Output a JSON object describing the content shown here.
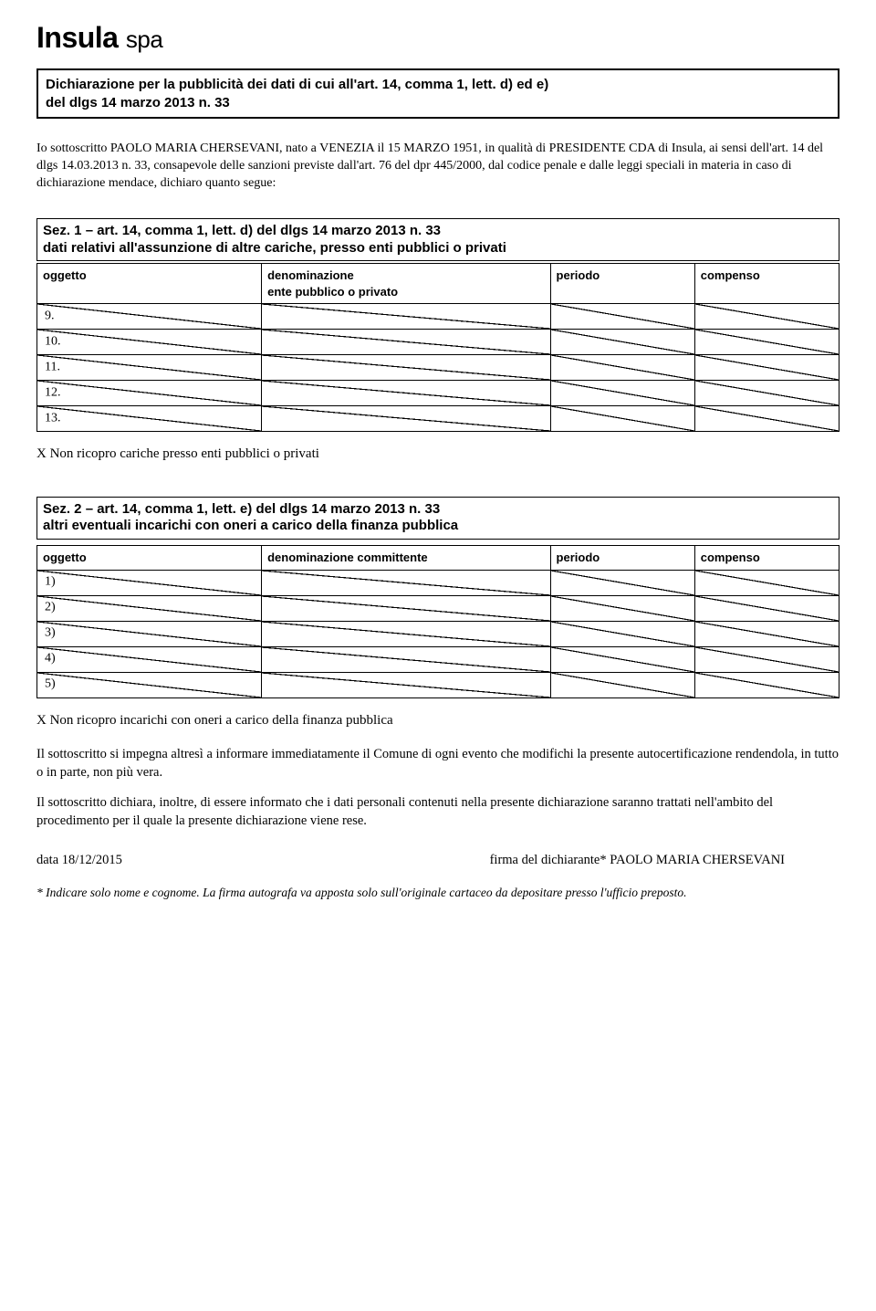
{
  "logo": {
    "main": "Insula",
    "suffix": "spa"
  },
  "titleBox": {
    "line1": "Dichiarazione per la pubblicità dei dati di cui all'art. 14, comma 1, lett. d) ed e)",
    "line2": "del dlgs 14 marzo 2013 n. 33"
  },
  "intro": "Io sottoscritto PAOLO MARIA CHERSEVANI, nato a VENEZIA il 15 MARZO 1951, in qualità di PRESIDENTE CDA di Insula, ai sensi dell'art. 14 del dlgs 14.03.2013 n. 33, consapevole delle sanzioni previste dall'art. 76 del dpr 445/2000, dal codice penale e dalle leggi speciali in materia in caso di dichiarazione mendace, dichiaro quanto segue:",
  "sez1": {
    "title": "Sez. 1 – art. 14, comma 1, lett. d) del dlgs 14 marzo 2013 n. 33",
    "subtitle": "dati relativi all'assunzione di altre cariche, presso enti pubblici o privati",
    "cols": {
      "oggetto": "oggetto",
      "denom": "denominazione\nente pubblico o privato",
      "periodo": "periodo",
      "compenso": "compenso"
    },
    "rows": [
      "9.",
      "10.",
      "11.",
      "12.",
      "13."
    ],
    "statement": "X Non ricopro cariche presso enti pubblici o privati"
  },
  "sez2": {
    "title": "Sez.  2 – art. 14, comma 1, lett. e) del dlgs 14 marzo 2013 n. 33",
    "subtitle": "altri eventuali incarichi con oneri a carico della finanza pubblica",
    "cols": {
      "oggetto": "oggetto",
      "denom": "denominazione committente",
      "periodo": "periodo",
      "compenso": "compenso"
    },
    "rows": [
      "1)",
      "2)",
      "3)",
      "4)",
      "5)"
    ],
    "statement": "X Non ricopro incarichi con oneri a carico della finanza pubblica"
  },
  "para1": "Il sottoscritto si impegna altresì a informare immediatamente il Comune di ogni evento che modifichi la presente autocertificazione rendendola, in tutto o in parte, non più vera.",
  "para2": "Il sottoscritto dichiara, inoltre, di essere informato che i dati personali contenuti nella presente dichiarazione saranno trattati nell'ambito del procedimento per il quale la presente dichiarazione viene rese.",
  "sig": {
    "date": "data 18/12/2015",
    "label": "firma del dichiarante* PAOLO MARIA CHERSEVANI"
  },
  "footnote": "* Indicare solo nome e cognome. La firma autografa va apposta solo sull'originale cartaceo da depositare presso l'ufficio preposto.",
  "layout": {
    "col_widths_pct": [
      28,
      36,
      18,
      18
    ]
  }
}
